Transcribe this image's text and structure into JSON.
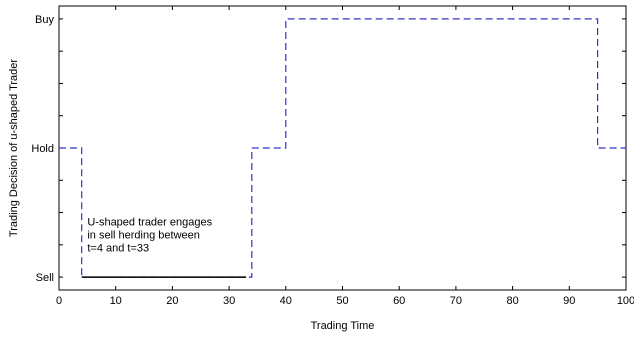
{
  "chart_data": {
    "type": "line",
    "xlabel": "Trading Time",
    "ylabel": "Trading Decision of u-shaped Trader",
    "xlim": [
      0,
      100
    ],
    "x_ticks": [
      0,
      10,
      20,
      30,
      40,
      50,
      60,
      70,
      80,
      90,
      100
    ],
    "y_levels": [
      {
        "label": "Sell",
        "value": -1
      },
      {
        "label": "Hold",
        "value": 0
      },
      {
        "label": "Buy",
        "value": 1
      }
    ],
    "ylim": [
      -1.1,
      1.1
    ],
    "grid": false,
    "series": [
      {
        "style": "dashed",
        "color": "#3333cc",
        "x": [
          0,
          4,
          4,
          34,
          34,
          40,
          40,
          95,
          95,
          100
        ],
        "y": [
          0,
          0,
          -1,
          -1,
          0,
          0,
          1,
          1,
          0,
          0
        ]
      },
      {
        "style": "solid",
        "color": "#000000",
        "x": [
          4,
          33
        ],
        "y": [
          -1,
          -1
        ]
      }
    ],
    "annotation": {
      "lines": [
        "U-shaped trader engages",
        "in sell herding between",
        "t=4 and t=33"
      ],
      "x": 5,
      "y": -0.6
    }
  }
}
